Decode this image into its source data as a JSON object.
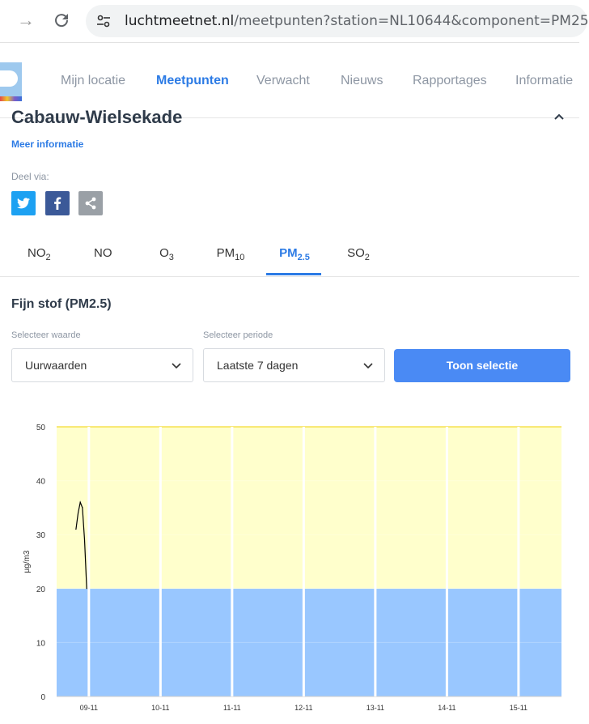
{
  "browser": {
    "url_host": "luchtmeetnet.nl",
    "url_path": "/meetpunten?station=NL10644&component=PM25"
  },
  "nav": {
    "items": [
      "Mijn locatie",
      "Meetpunten",
      "Verwacht",
      "Nieuws",
      "Rapportages",
      "Informatie"
    ],
    "active": "Meetpunten"
  },
  "station": {
    "title": "Cabauw-Wielsekade",
    "more_info": "Meer informatie",
    "share_label": "Deel via:"
  },
  "tabs": [
    {
      "base": "NO",
      "sub": "2"
    },
    {
      "base": "NO",
      "sub": ""
    },
    {
      "base": "O",
      "sub": "3"
    },
    {
      "base": "PM",
      "sub": "10"
    },
    {
      "base": "PM",
      "sub": "2.5"
    },
    {
      "base": "SO",
      "sub": "2"
    }
  ],
  "active_tab_index": 4,
  "section_title": "Fijn stof (PM2.5)",
  "controls": {
    "value_label": "Selecteer waarde",
    "value_selected": "Uurwaarden",
    "period_label": "Selecteer periode",
    "period_selected": "Laatste 7 dagen",
    "submit": "Toon selectie"
  },
  "colors": {
    "accent": "#2c7be5",
    "button": "#4a8af4",
    "band_low": "#99c7ff",
    "band_mid": "#ffffcc",
    "band_line": "#f2d200",
    "twitter": "#1da1f2",
    "facebook": "#3b5998",
    "share": "#9aa0a6"
  },
  "chart_data": {
    "type": "line",
    "ylabel": "µg/m3",
    "ylim": [
      0,
      50
    ],
    "yticks": [
      0,
      10,
      20,
      30,
      40,
      50
    ],
    "xticks": [
      "09-11",
      "10-11",
      "11-11",
      "12-11",
      "13-11",
      "14-11",
      "15-11"
    ],
    "xrange_days": [
      -0.45,
      6.6
    ],
    "bands": [
      {
        "from": 0,
        "to": 20,
        "color": "#99c7ff"
      },
      {
        "from": 20,
        "to": 50,
        "color": "#ffffcc"
      }
    ],
    "series": [
      {
        "x_days": [
          -0.18,
          -0.15,
          -0.12,
          -0.09,
          -0.06,
          -0.03
        ],
        "values": [
          31,
          34,
          36,
          35,
          29,
          20
        ]
      }
    ]
  }
}
